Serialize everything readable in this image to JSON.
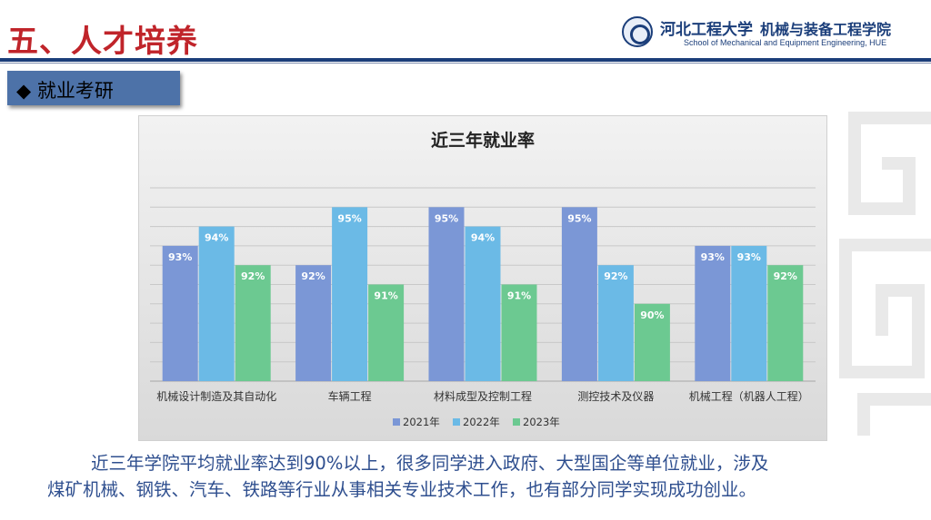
{
  "header": {
    "title": "五、人才培养",
    "logo_university": "河北工程大学",
    "logo_school_cn": "机械与装备工程学院",
    "logo_school_en": "School of Mechanical and Equipment Engineering, HUE"
  },
  "section": {
    "marker": "◆",
    "label": "就业考研"
  },
  "chart_data": {
    "type": "bar",
    "title": "近三年就业率",
    "categories": [
      "机械设计制造及其自动化",
      "车辆工程",
      "材料成型及控制工程",
      "测控技术及仪器",
      "机械工程（机器人工程）"
    ],
    "series": [
      {
        "name": "2021年",
        "values": [
          93,
          92,
          95,
          95,
          93
        ],
        "labels": [
          "93%",
          "92%",
          "95%",
          "95%",
          "93%"
        ],
        "color": "#7b97d6"
      },
      {
        "name": "2022年",
        "values": [
          94,
          95,
          94,
          92,
          93
        ],
        "labels": [
          "94%",
          "95%",
          "94%",
          "92%",
          "93%"
        ],
        "color": "#6bbae6"
      },
      {
        "name": "2023年",
        "values": [
          92,
          91,
          91,
          90,
          92
        ],
        "labels": [
          "92%",
          "91%",
          "91%",
          "90%",
          "92%"
        ],
        "color": "#6cc991"
      }
    ],
    "ylim": [
      86,
      96
    ],
    "grid": true,
    "legend_position": "bottom"
  },
  "paragraph": {
    "line1": "近三年学院平均就业率达到90%以上，很多同学进入政府、大型国企等单位就业，涉及",
    "line2": "煤矿机械、钢铁、汽车、铁路等行业从事相关专业技术工作，也有部分同学实现成功创业。"
  },
  "colors": {
    "title_red": "#c0242a",
    "navy": "#1b3e7a",
    "section_blue": "#4d72a8",
    "text_blue": "#2f4f8f"
  }
}
